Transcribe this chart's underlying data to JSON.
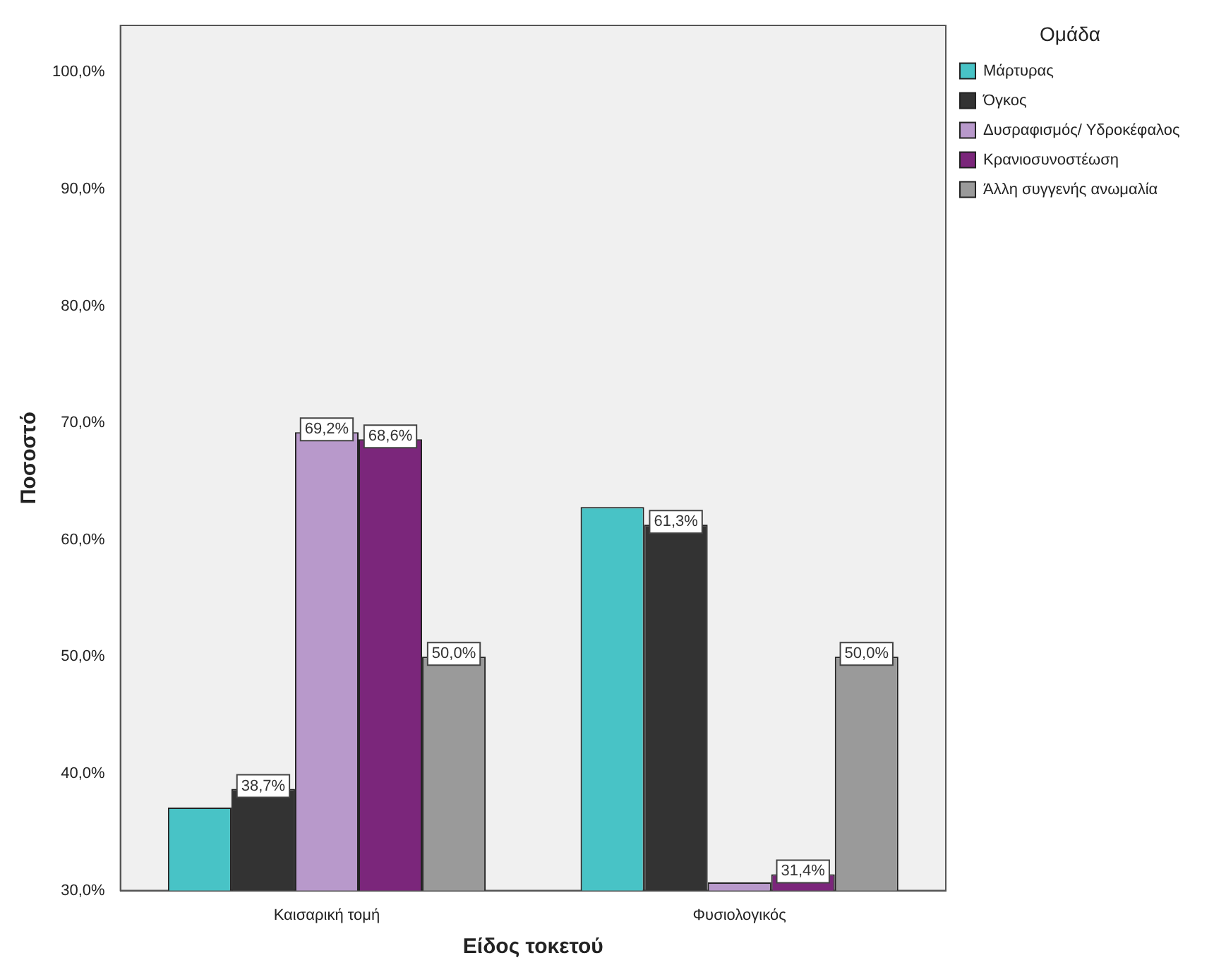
{
  "chart_data": {
    "type": "bar",
    "xlabel": "Είδος τοκετού",
    "ylabel": "Ποσοστό",
    "legend_title": "Ομάδα",
    "legend": "top right",
    "grid": false,
    "categories": [
      "Καισαρική τομή",
      "Φυσιολογικός"
    ],
    "ylim": [
      30,
      104
    ],
    "yticks": [
      {
        "value": 30,
        "label": "30,0%"
      },
      {
        "value": 40,
        "label": "40,0%"
      },
      {
        "value": 50,
        "label": "50,0%"
      },
      {
        "value": 60,
        "label": "60,0%"
      },
      {
        "value": 70,
        "label": "70,0%"
      },
      {
        "value": 80,
        "label": "80,0%"
      },
      {
        "value": 90,
        "label": "90,0%"
      },
      {
        "value": 100,
        "label": "100,0%"
      }
    ],
    "series": [
      {
        "name": "Μάρτυρας",
        "color": "#48c3c6",
        "values": [
          37.1,
          62.8
        ],
        "value_labels": [
          null,
          null
        ]
      },
      {
        "name": "Όγκος",
        "color": "#333333",
        "values": [
          38.7,
          61.3
        ],
        "value_labels": [
          "38,7%",
          "61,3%"
        ]
      },
      {
        "name": "Δυσραφισμός/ Υδροκέφαλος",
        "color": "#b899cb",
        "values": [
          69.2,
          30.7
        ],
        "value_labels": [
          "69,2%",
          null
        ]
      },
      {
        "name": "Κρανιοσυνοστέωση",
        "color": "#7b267b",
        "values": [
          68.6,
          31.4
        ],
        "value_labels": [
          "68,6%",
          "31,4%"
        ]
      },
      {
        "name": "Άλλη συγγενής ανωμαλία",
        "color": "#9a9a9a",
        "values": [
          50.0,
          50.0
        ],
        "value_labels": [
          "50,0%",
          "50,0%"
        ]
      }
    ]
  }
}
